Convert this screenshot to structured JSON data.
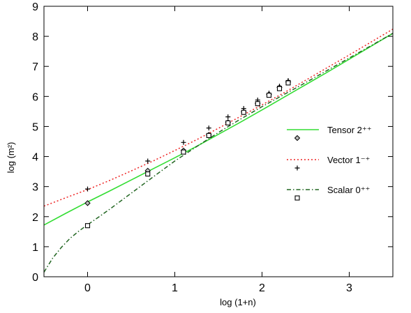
{
  "chart_data": {
    "type": "line",
    "title": "",
    "xlabel": "log (1+n)",
    "ylabel": "log (m²)",
    "xlim": [
      -0.5,
      3.5
    ],
    "ylim": [
      0,
      9
    ],
    "xticks": [
      0,
      1,
      2,
      3
    ],
    "yticks": [
      0,
      1,
      2,
      3,
      4,
      5,
      6,
      7,
      8,
      9
    ],
    "grid": false,
    "legend_position": "right",
    "series": [
      {
        "name": "Tensor 2⁺⁺",
        "color": "#33dd33",
        "line_style": "solid",
        "marker": "diamond",
        "line": {
          "x": [
            -0.5,
            -0.25,
            0,
            0.25,
            0.5,
            0.75,
            1,
            1.25,
            1.5,
            1.75,
            2,
            2.25,
            2.5,
            2.75,
            3,
            3.25,
            3.5
          ],
          "y": [
            1.72,
            2.11,
            2.49,
            2.85,
            3.22,
            3.59,
            3.96,
            4.34,
            4.74,
            5.14,
            5.55,
            5.97,
            6.39,
            6.81,
            7.24,
            7.67,
            8.1
          ]
        },
        "points": {
          "x": [
            0,
            0.69,
            1.1,
            1.39,
            1.61,
            1.79,
            1.95,
            2.08,
            2.2,
            2.3
          ],
          "y": [
            2.45,
            3.53,
            4.2,
            4.72,
            5.14,
            5.49,
            5.77,
            6.07,
            6.3,
            6.48
          ]
        }
      },
      {
        "name": "Vector 1⁻⁺",
        "color": "#ee2222",
        "line_style": "dotted",
        "marker": "plus",
        "line": {
          "x": [
            -0.5,
            -0.25,
            0,
            0.25,
            0.5,
            0.75,
            1,
            1.25,
            1.5,
            1.75,
            2,
            2.25,
            2.5,
            2.75,
            3,
            3.25,
            3.5
          ],
          "y": [
            2.35,
            2.63,
            2.9,
            3.2,
            3.52,
            3.85,
            4.2,
            4.56,
            4.94,
            5.33,
            5.72,
            6.12,
            6.54,
            6.96,
            7.38,
            7.81,
            8.24
          ]
        },
        "points": {
          "x": [
            0,
            0.69,
            1.1,
            1.39,
            1.61,
            1.79,
            1.95,
            2.08,
            2.2,
            2.3
          ],
          "y": [
            2.92,
            3.85,
            4.47,
            4.95,
            5.32,
            5.6,
            5.88,
            6.11,
            6.34,
            6.53
          ]
        }
      },
      {
        "name": "Scalar 0⁺⁺",
        "color": "#226622",
        "line_style": "dashdot",
        "marker": "square",
        "line": {
          "x": [
            -0.5,
            -0.4,
            -0.3,
            -0.2,
            -0.1,
            0,
            0.1,
            0.25,
            0.5,
            0.75,
            1,
            1.25,
            1.5,
            1.75,
            2,
            2.25,
            2.5,
            2.75,
            3,
            3.25,
            3.5
          ],
          "y": [
            0.15,
            0.62,
            0.98,
            1.28,
            1.52,
            1.73,
            1.93,
            2.24,
            2.78,
            3.32,
            3.85,
            4.33,
            4.8,
            5.24,
            5.66,
            6.06,
            6.46,
            6.87,
            7.28,
            7.69,
            8.1
          ]
        },
        "points": {
          "x": [
            0,
            0.69,
            1.1,
            1.39,
            1.61,
            1.79,
            1.95,
            2.08,
            2.2,
            2.3
          ],
          "y": [
            1.7,
            3.42,
            4.15,
            4.7,
            5.12,
            5.47,
            5.76,
            6.04,
            6.26,
            6.45
          ]
        }
      }
    ]
  }
}
